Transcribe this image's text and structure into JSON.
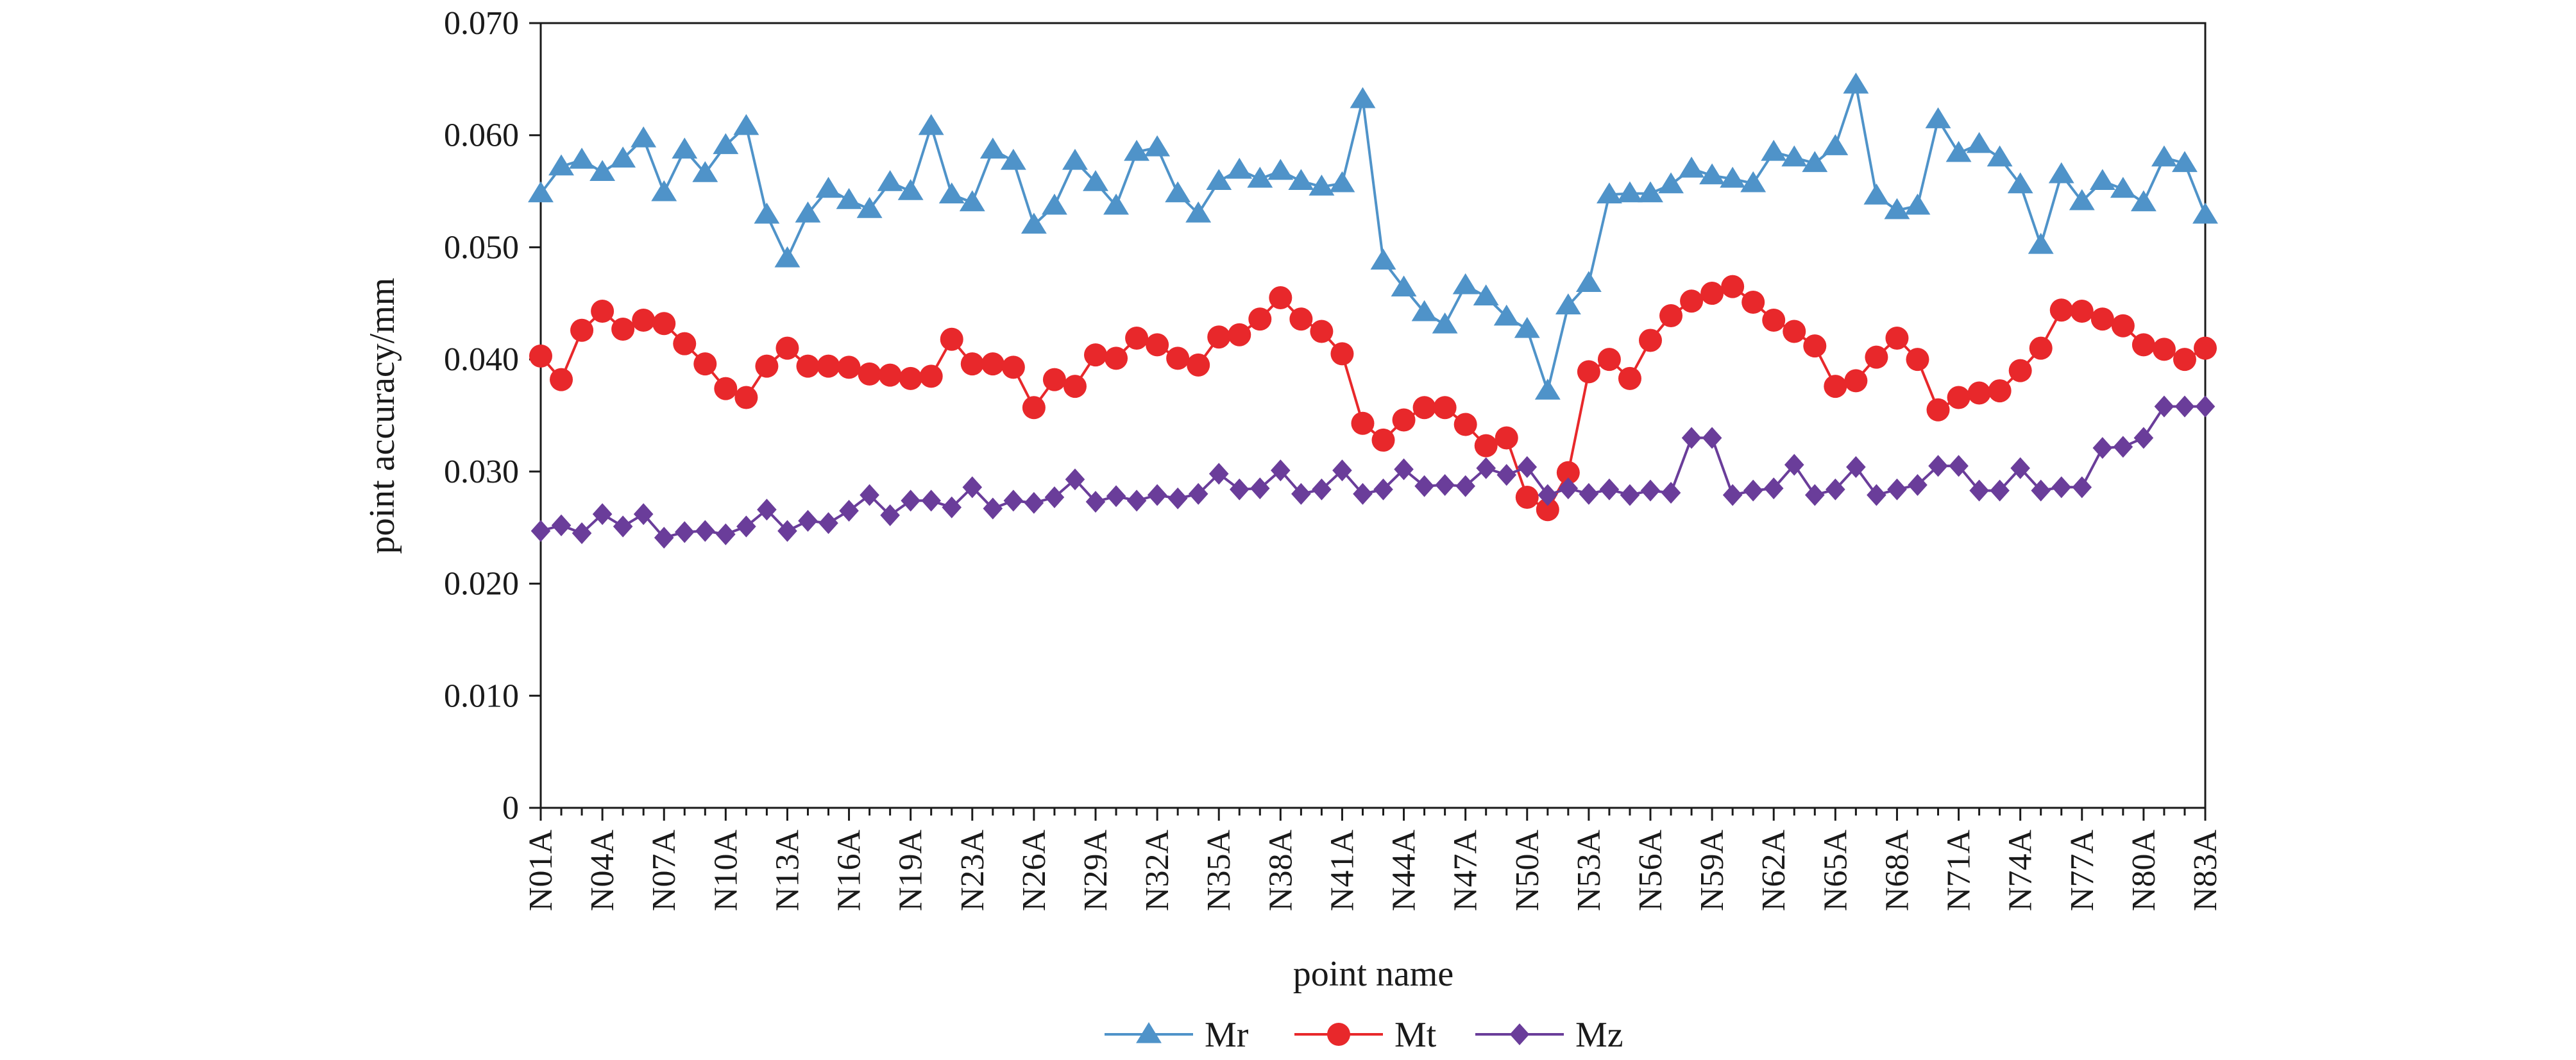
{
  "chart_data": {
    "type": "line",
    "xlabel": "point name",
    "ylabel": "point accuracy/mm",
    "ylim": [
      0,
      0.07
    ],
    "yticks": [
      "0",
      "0.010",
      "0.020",
      "0.030",
      "0.040",
      "0.050",
      "0.060",
      "0.070"
    ],
    "x_tick_labels": [
      "N01A",
      "N04A",
      "N07A",
      "N10A",
      "N13A",
      "N16A",
      "N19A",
      "N23A",
      "N26A",
      "N29A",
      "N32A",
      "N35A",
      "N38A",
      "N41A",
      "N44A",
      "N47A",
      "N50A",
      "N53A",
      "N56A",
      "N59A",
      "N62A",
      "N65A",
      "N68A",
      "N71A",
      "N74A",
      "N77A",
      "N80A",
      "N83A"
    ],
    "point_count": 82,
    "grid": false,
    "legend_position": "bottom",
    "series": [
      {
        "name": "Mr",
        "color": "#4f93c9",
        "marker": "triangle",
        "values": [
          0.0548,
          0.0572,
          0.0578,
          0.0567,
          0.0579,
          0.0597,
          0.0549,
          0.0587,
          0.0566,
          0.0591,
          0.0608,
          0.0529,
          0.049,
          0.053,
          0.0552,
          0.0542,
          0.0534,
          0.0558,
          0.055,
          0.0608,
          0.0547,
          0.054,
          0.0587,
          0.0577,
          0.052,
          0.0537,
          0.0577,
          0.0558,
          0.0537,
          0.0585,
          0.0589,
          0.0548,
          0.053,
          0.0559,
          0.0569,
          0.0561,
          0.0568,
          0.0559,
          0.0554,
          0.0557,
          0.0632,
          0.0488,
          0.0464,
          0.0442,
          0.0431,
          0.0466,
          0.0456,
          0.0438,
          0.0427,
          0.0372,
          0.0448,
          0.0468,
          0.0547,
          0.0548,
          0.0548,
          0.0556,
          0.057,
          0.0564,
          0.0561,
          0.0557,
          0.0585,
          0.058,
          0.0575,
          0.059,
          0.0645,
          0.0546,
          0.0533,
          0.0537,
          0.0614,
          0.0584,
          0.0592,
          0.058,
          0.0556,
          0.0502,
          0.0565,
          0.0541,
          0.0559,
          0.0552,
          0.054,
          0.058,
          0.0575,
          0.0529
        ]
      },
      {
        "name": "Mt",
        "color": "#e8282b",
        "marker": "circle",
        "values": [
          0.0403,
          0.0382,
          0.0426,
          0.0443,
          0.0427,
          0.0435,
          0.0432,
          0.0414,
          0.0396,
          0.0374,
          0.0366,
          0.0394,
          0.041,
          0.0394,
          0.0394,
          0.0393,
          0.0387,
          0.0386,
          0.0383,
          0.0385,
          0.0418,
          0.0396,
          0.0396,
          0.0393,
          0.0357,
          0.0382,
          0.0376,
          0.0404,
          0.0401,
          0.0419,
          0.0413,
          0.0401,
          0.0395,
          0.042,
          0.0422,
          0.0436,
          0.0455,
          0.0436,
          0.0425,
          0.0405,
          0.0343,
          0.0328,
          0.0346,
          0.0357,
          0.0357,
          0.0342,
          0.0323,
          0.033,
          0.0277,
          0.0266,
          0.0299,
          0.0389,
          0.04,
          0.0383,
          0.0417,
          0.0439,
          0.0452,
          0.0459,
          0.0465,
          0.0451,
          0.0435,
          0.0425,
          0.0412,
          0.0376,
          0.0381,
          0.0402,
          0.0419,
          0.04,
          0.0355,
          0.0366,
          0.037,
          0.0372,
          0.039,
          0.041,
          0.0444,
          0.0443,
          0.0436,
          0.043,
          0.0413,
          0.0409,
          0.04,
          0.041
        ]
      },
      {
        "name": "Mz",
        "color": "#6a3d9a",
        "marker": "diamond",
        "values": [
          0.0247,
          0.0252,
          0.0245,
          0.0262,
          0.0251,
          0.0262,
          0.0241,
          0.0246,
          0.0247,
          0.0244,
          0.0251,
          0.0266,
          0.0247,
          0.0256,
          0.0254,
          0.0265,
          0.0279,
          0.0261,
          0.0274,
          0.0274,
          0.0268,
          0.0286,
          0.0267,
          0.0274,
          0.0272,
          0.0277,
          0.0293,
          0.0273,
          0.0278,
          0.0274,
          0.0279,
          0.0276,
          0.028,
          0.0298,
          0.0284,
          0.0285,
          0.0301,
          0.028,
          0.0284,
          0.0301,
          0.028,
          0.0284,
          0.0302,
          0.0287,
          0.0288,
          0.0287,
          0.0303,
          0.0297,
          0.0304,
          0.0279,
          0.0285,
          0.028,
          0.0284,
          0.0279,
          0.0283,
          0.0281,
          0.033,
          0.033,
          0.0279,
          0.0283,
          0.0285,
          0.0306,
          0.0279,
          0.0284,
          0.0304,
          0.0279,
          0.0284,
          0.0288,
          0.0305,
          0.0305,
          0.0283,
          0.0283,
          0.0303,
          0.0283,
          0.0286,
          0.0286,
          0.0321,
          0.0322,
          0.033,
          0.0358,
          0.0358,
          0.0358
        ]
      }
    ]
  }
}
